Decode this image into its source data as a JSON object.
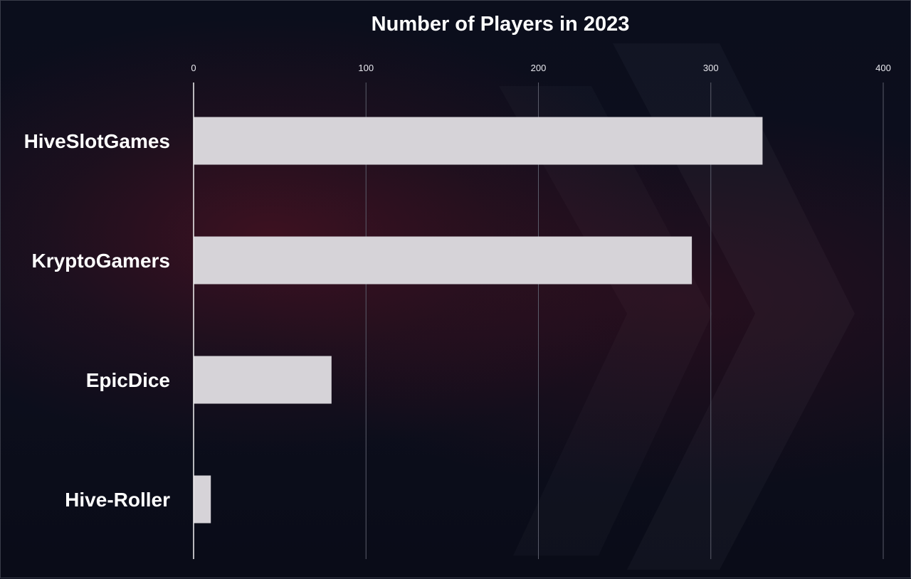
{
  "chart_data": {
    "type": "bar",
    "orientation": "horizontal",
    "title": "Number of Players in 2023",
    "xlabel": "",
    "ylabel": "",
    "categories": [
      "HiveSlotGames",
      "KryptoGamers",
      "EpicDice",
      "Hive-Roller"
    ],
    "values": [
      330,
      289,
      80,
      10
    ],
    "xlim": [
      0,
      400
    ],
    "ticks": [
      "0",
      "100",
      "200",
      "300",
      "400"
    ],
    "tick_position": "top",
    "grid": true,
    "legend": "none",
    "colors": {
      "bar": "#d6d3d8",
      "grid": "#5a5c6a",
      "axis": "#f2f2f2",
      "text": "#ffffff",
      "background": "#0b0e1c"
    }
  }
}
